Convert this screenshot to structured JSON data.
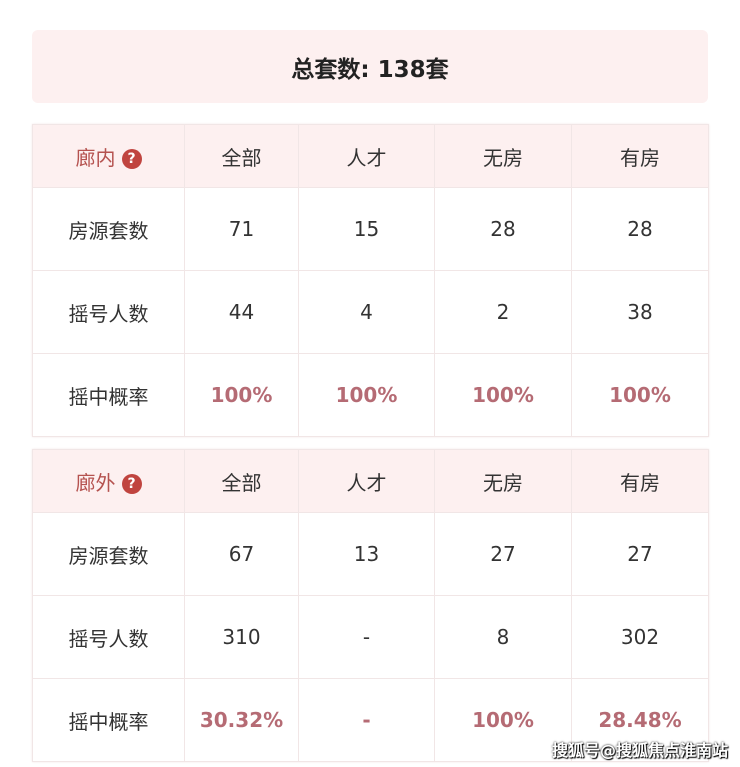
{
  "total": "总套数: 138套",
  "columns": [
    "全部",
    "人才",
    "无房",
    "有房"
  ],
  "tables": [
    {
      "region": "廊内",
      "rows": [
        {
          "label": "房源套数",
          "values": [
            "71",
            "15",
            "28",
            "28"
          ]
        },
        {
          "label": "摇号人数",
          "values": [
            "44",
            "4",
            "2",
            "38"
          ]
        },
        {
          "label": "摇中概率",
          "values": [
            "100%",
            "100%",
            "100%",
            "100%"
          ]
        }
      ]
    },
    {
      "region": "廊外",
      "rows": [
        {
          "label": "房源套数",
          "values": [
            "67",
            "13",
            "27",
            "27"
          ]
        },
        {
          "label": "摇号人数",
          "values": [
            "310",
            "-",
            "8",
            "302"
          ]
        },
        {
          "label": "摇中概率",
          "values": [
            "30.32%",
            "-",
            "100%",
            "28.48%"
          ]
        }
      ]
    }
  ],
  "help_glyph": "?",
  "watermark": "搜狐号@搜狐焦点淮南站",
  "colors": {
    "header_bg": "#fdf0f0",
    "accent": "#b5524f",
    "percent": "#b56b74"
  }
}
